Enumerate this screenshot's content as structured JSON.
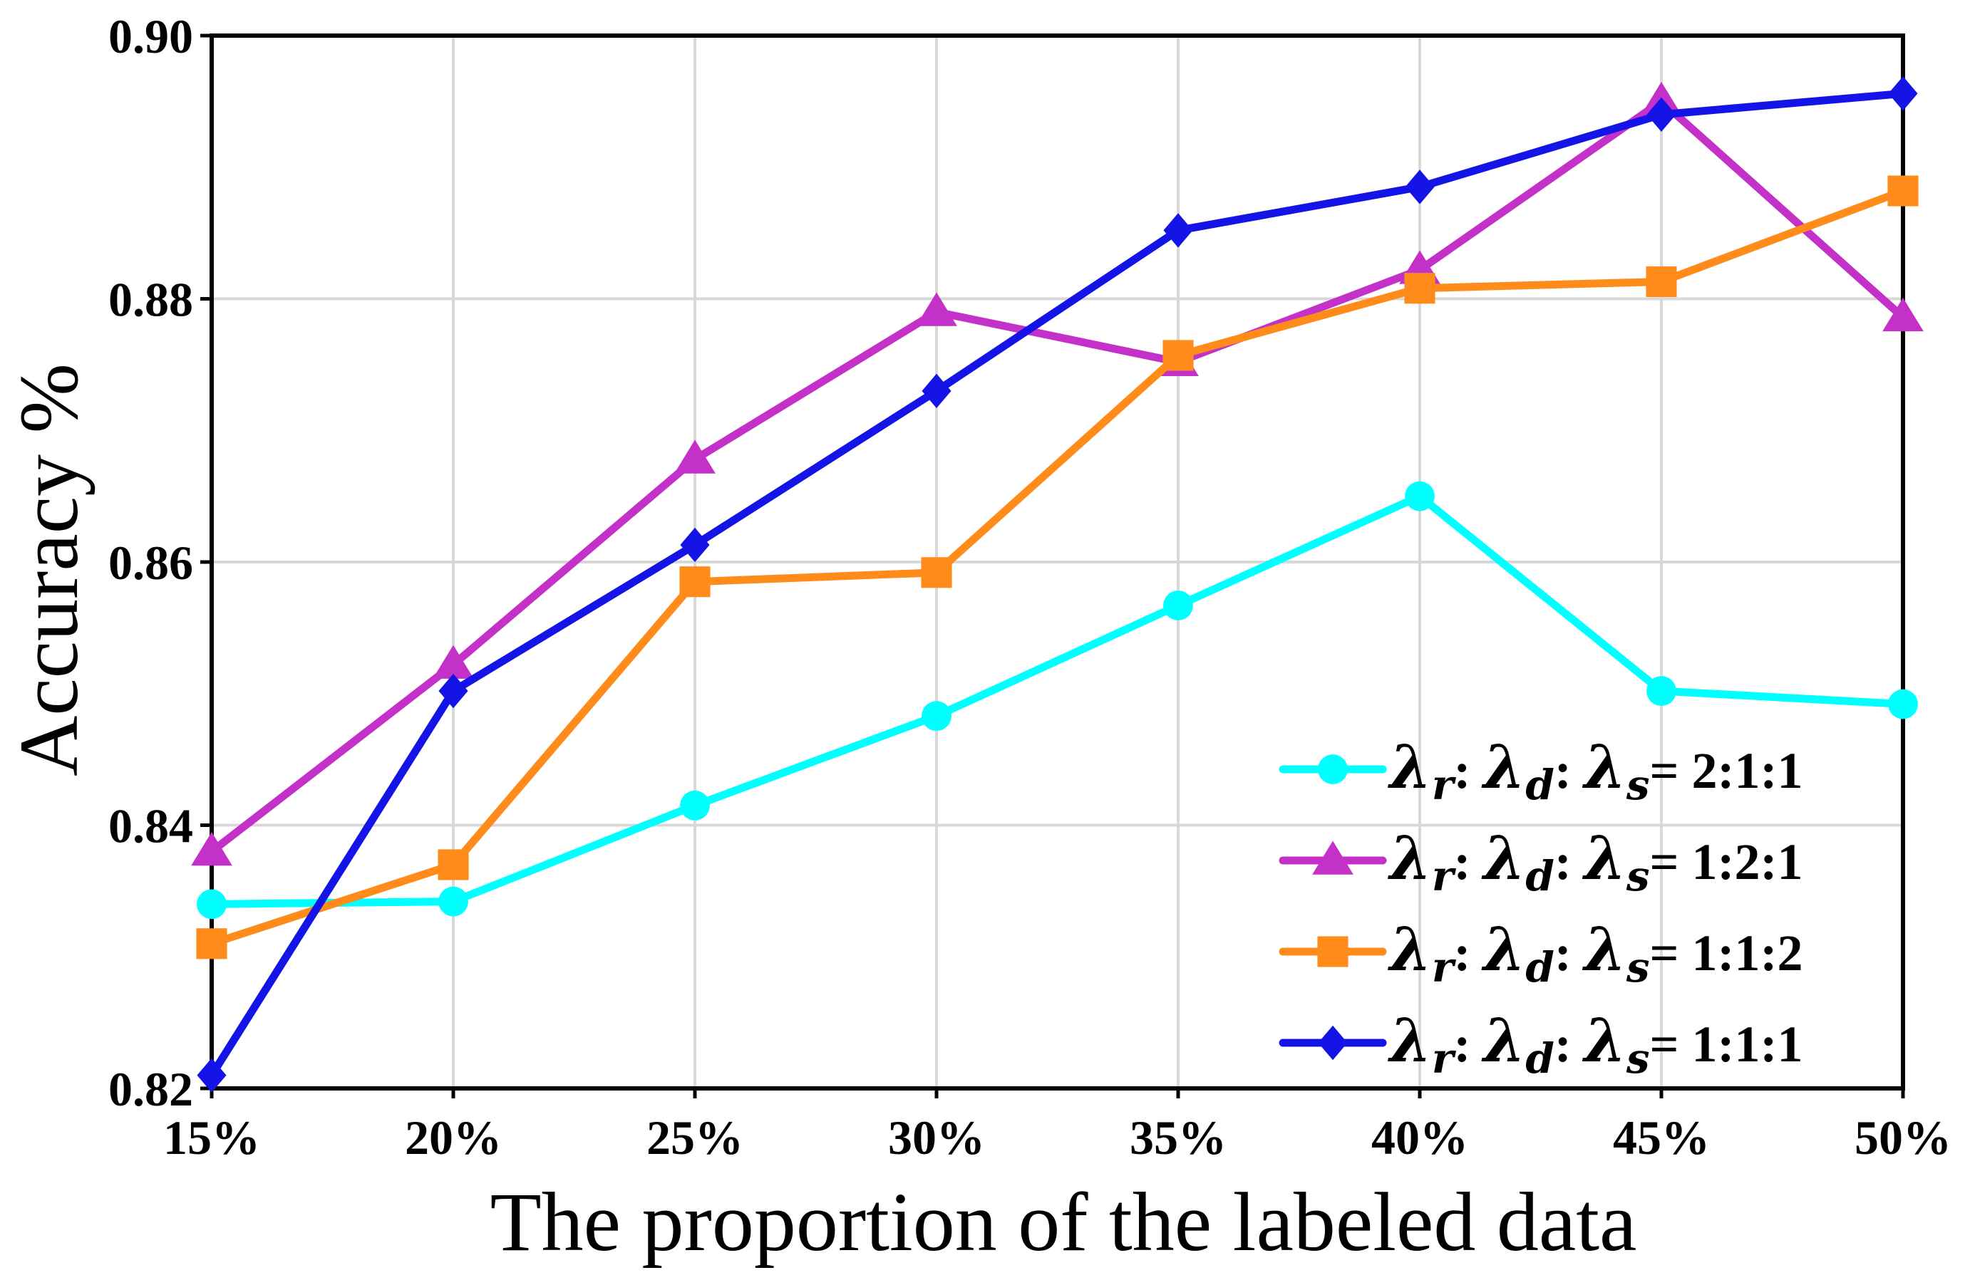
{
  "chart_data": {
    "type": "line",
    "title": "",
    "xlabel": "The proportion of the labeled data",
    "ylabel": "Accuracy %",
    "categories": [
      "15%",
      "20%",
      "25%",
      "30%",
      "35%",
      "40%",
      "45%",
      "50%"
    ],
    "ylim": [
      0.82,
      0.9
    ],
    "yticks": [
      "0.82",
      "0.84",
      "0.86",
      "0.88",
      "0.90"
    ],
    "grid": true,
    "legend_position": "bottom-right",
    "series": [
      {
        "name": "λr: λd: λs= 2:1:1",
        "ratio": "2:1:1",
        "color": "#00FFFF",
        "marker": "circle",
        "values": [
          0.834,
          0.8342,
          0.8415,
          0.8483,
          0.8567,
          0.865,
          0.8502,
          0.8492
        ]
      },
      {
        "name": "λr: λd: λs= 1:2:1",
        "ratio": "1:2:1",
        "color": "#C431C8",
        "marker": "triangle",
        "values": [
          0.838,
          0.8522,
          0.8678,
          0.879,
          0.8752,
          0.8822,
          0.895,
          0.8786
        ]
      },
      {
        "name": "λr: λd: λs= 1:1:2",
        "ratio": "1:1:2",
        "color": "#FF8C1A",
        "marker": "square",
        "values": [
          0.831,
          0.837,
          0.8585,
          0.8592,
          0.8757,
          0.8808,
          0.8813,
          0.8882
        ]
      },
      {
        "name": "λr: λd: λs= 1:1:1",
        "ratio": "1:1:1",
        "color": "#1414E6",
        "marker": "diamond",
        "values": [
          0.821,
          0.8502,
          0.8613,
          0.873,
          0.8852,
          0.8885,
          0.894,
          0.8956
        ]
      }
    ],
    "legend_symbols": {
      "lambda": "λ",
      "sub_r": "r",
      "sub_d": "d",
      "sub_s": "s",
      "colon": ":",
      "equals": "="
    }
  }
}
